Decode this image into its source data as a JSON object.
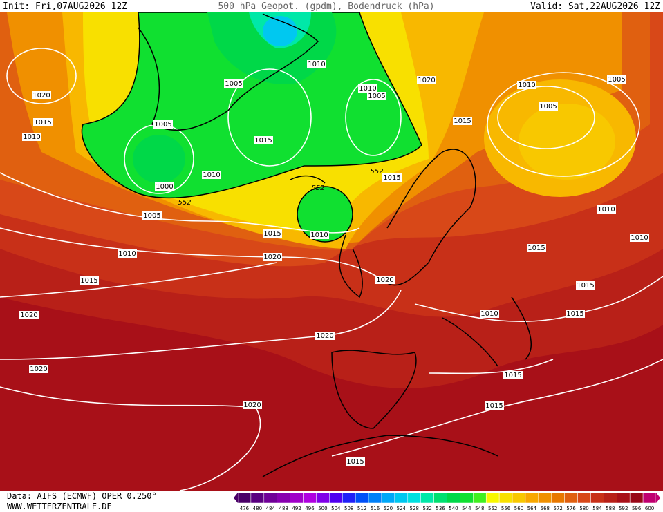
{
  "header": {
    "init": "Init: Fri,07AUG2026 12Z",
    "title": "500 hPa Geopot. (gpdm), Bodendruck (hPa)",
    "valid": "Valid: Sat,22AUG2026 12Z"
  },
  "isobar_labels": [
    "1020",
    "1015",
    "1010",
    "1005",
    "1010",
    "1005",
    "1015",
    "1010",
    "1000",
    "552",
    "1005",
    "552",
    "1010",
    "1015",
    "1010",
    "1020",
    "1015",
    "1020",
    "1020",
    "1020",
    "1020",
    "1015",
    "1020",
    "1015",
    "552",
    "1010",
    "1005",
    "1020",
    "1015",
    "1010",
    "1005",
    "1005",
    "1010",
    "1010",
    "1015",
    "1015",
    "1015",
    "1010",
    "1015",
    "1015"
  ],
  "colorbar": {
    "labels": [
      476,
      480,
      484,
      488,
      492,
      496,
      500,
      504,
      508,
      512,
      516,
      520,
      524,
      528,
      532,
      536,
      540,
      544,
      548,
      552,
      556,
      560,
      564,
      568,
      572,
      576,
      580,
      584,
      588,
      592,
      596,
      600
    ],
    "colors": [
      "#4a0068",
      "#5a0080",
      "#700098",
      "#8800b0",
      "#a000c8",
      "#b000e0",
      "#8000e8",
      "#5000f0",
      "#2020f8",
      "#0050f8",
      "#0080f8",
      "#00a8f8",
      "#00c8f0",
      "#00e0e0",
      "#00e8a8",
      "#00e070",
      "#00d848",
      "#10e030",
      "#40f020",
      "#f8f800",
      "#f8e000",
      "#f8c800",
      "#f8a800",
      "#f09000",
      "#e87800",
      "#e06010",
      "#d84818",
      "#c83018",
      "#b82018",
      "#a81018",
      "#980818",
      "#c00070"
    ]
  },
  "footer": {
    "source": "Data: AIFS (ECMWF) OPER 0.250°",
    "site": "WWW.WETTERZENTRALE.DE"
  }
}
